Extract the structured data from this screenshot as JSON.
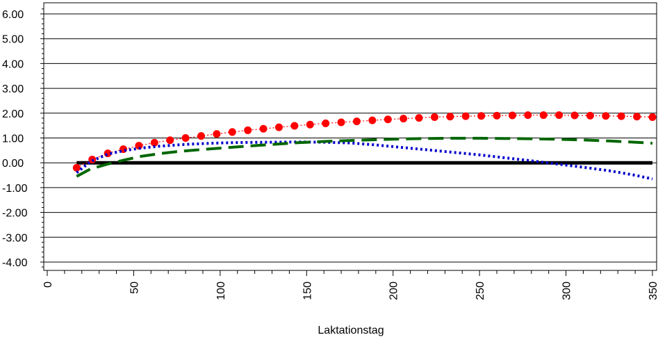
{
  "chart_data": {
    "type": "line",
    "title": "",
    "xlabel": "Laktationstag",
    "ylabel": "",
    "xlim": [
      0,
      350
    ],
    "ylim": [
      -4.3,
      6.3
    ],
    "x_ticks": [
      0,
      50,
      100,
      150,
      200,
      250,
      300,
      350
    ],
    "y_ticks": [
      6.0,
      5.0,
      4.0,
      3.0,
      2.0,
      1.0,
      0.0,
      -1.0,
      -2.0,
      -3.0,
      -4.0
    ],
    "y_tick_labels": [
      "6.00",
      "5.00",
      "4.00",
      "3.00",
      "2.00",
      "1.00",
      "0.00",
      "-1.00",
      "-2.00",
      "-3.00",
      "-4.00"
    ],
    "x_tick_labels": [
      "0",
      "50",
      "100",
      "150",
      "200",
      "250",
      "300",
      "350"
    ],
    "grid": "horizontal",
    "legend": "none",
    "series": [
      {
        "style": "solid-thick",
        "color": "#000000",
        "x": [
          17,
          350
        ],
        "y": [
          0.0,
          0.0
        ]
      },
      {
        "style": "dotted-with-markers",
        "color": "#ff0000",
        "x": [
          17,
          26,
          35,
          44,
          53,
          62,
          71,
          80,
          89,
          98,
          107,
          116,
          125,
          134,
          143,
          152,
          161,
          170,
          179,
          188,
          197,
          206,
          215,
          224,
          233,
          242,
          251,
          260,
          269,
          278,
          287,
          296,
          305,
          314,
          323,
          332,
          341,
          350
        ],
        "y": [
          -0.2,
          0.13,
          0.38,
          0.55,
          0.69,
          0.81,
          0.91,
          1.0,
          1.08,
          1.16,
          1.24,
          1.31,
          1.37,
          1.43,
          1.49,
          1.54,
          1.59,
          1.63,
          1.67,
          1.71,
          1.75,
          1.78,
          1.81,
          1.84,
          1.86,
          1.88,
          1.89,
          1.9,
          1.91,
          1.92,
          1.92,
          1.92,
          1.91,
          1.9,
          1.89,
          1.88,
          1.86,
          1.84
        ]
      },
      {
        "style": "dotted",
        "color": "#0000cc",
        "x": [
          17,
          25,
          35,
          45,
          55,
          65,
          75,
          85,
          100,
          115,
          130,
          145,
          160,
          175,
          190,
          205,
          220,
          235,
          250,
          265,
          280,
          295,
          310,
          325,
          340,
          350
        ],
        "y": [
          -0.4,
          0.05,
          0.35,
          0.5,
          0.6,
          0.67,
          0.72,
          0.76,
          0.8,
          0.82,
          0.83,
          0.84,
          0.83,
          0.8,
          0.72,
          0.62,
          0.52,
          0.42,
          0.32,
          0.2,
          0.08,
          -0.05,
          -0.18,
          -0.32,
          -0.5,
          -0.65
        ]
      },
      {
        "style": "dashed",
        "color": "#006600",
        "x": [
          17,
          25,
          35,
          45,
          55,
          65,
          75,
          85,
          100,
          115,
          130,
          145,
          160,
          175,
          190,
          205,
          220,
          235,
          250,
          265,
          280,
          295,
          310,
          325,
          340,
          350
        ],
        "y": [
          -0.55,
          -0.25,
          -0.05,
          0.12,
          0.27,
          0.37,
          0.45,
          0.51,
          0.59,
          0.67,
          0.74,
          0.81,
          0.86,
          0.9,
          0.93,
          0.96,
          0.98,
          0.99,
          0.99,
          0.98,
          0.97,
          0.95,
          0.92,
          0.88,
          0.83,
          0.79
        ]
      }
    ]
  }
}
